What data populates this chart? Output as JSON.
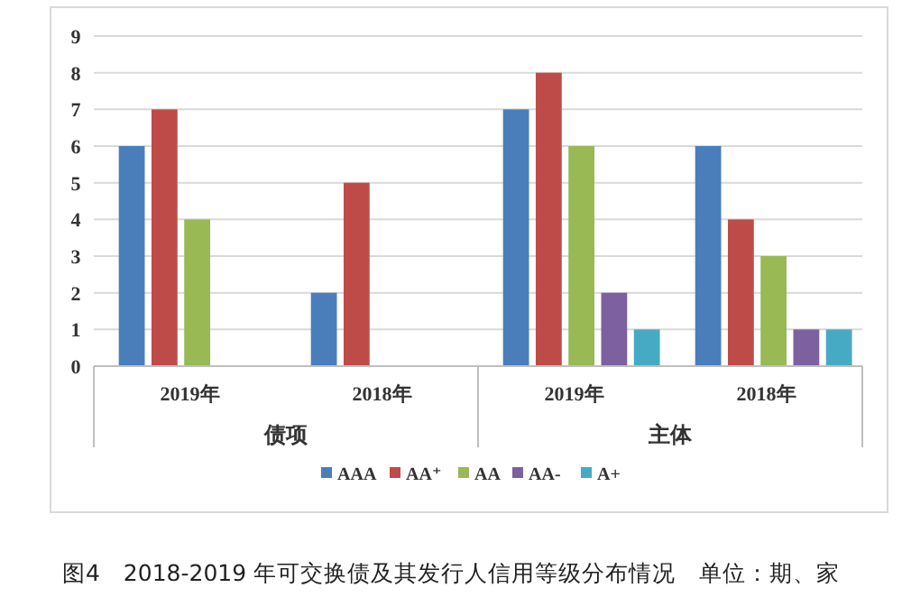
{
  "chart_data": {
    "type": "bar",
    "title": "图4　2018-2019 年可交换债及其发行人信用等级分布情况　单位：期、家",
    "categories": [
      "2019年",
      "2018年",
      "2019年",
      "2018年"
    ],
    "annotations": [
      "债项",
      "主体"
    ],
    "series": [
      {
        "name": "AAA",
        "color": "#4a7ebb",
        "values": [
          6,
          2,
          7,
          6
        ]
      },
      {
        "name": "AA⁺",
        "color": "#be4b48",
        "values": [
          7,
          5,
          8,
          4
        ]
      },
      {
        "name": "AA",
        "color": "#98b954",
        "values": [
          4,
          null,
          6,
          3
        ]
      },
      {
        "name": "AA-",
        "color": "#7d60a0",
        "values": [
          null,
          null,
          2,
          1
        ]
      },
      {
        "name": "A+",
        "color": "#46aac5",
        "values": [
          null,
          null,
          1,
          1
        ]
      }
    ],
    "ylim": [
      0,
      9
    ],
    "yticks": [
      0,
      1,
      2,
      3,
      4,
      5,
      6,
      7,
      8,
      9
    ],
    "grid": "y",
    "legend": "bottom"
  }
}
